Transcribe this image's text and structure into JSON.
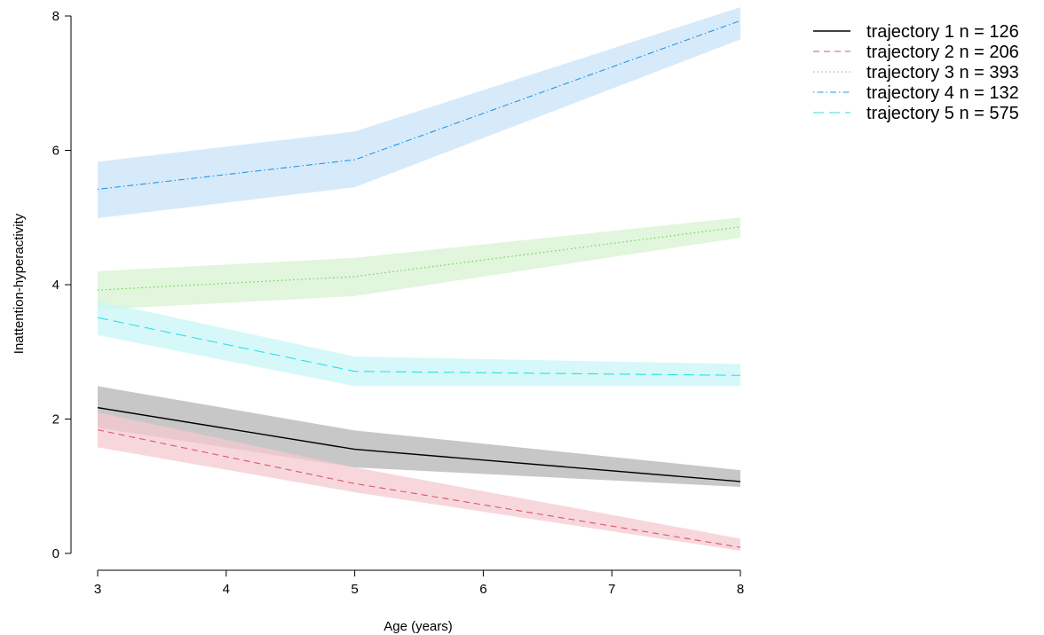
{
  "chart_data": {
    "type": "line",
    "xlabel": "Age (years)",
    "ylabel": "Inattention-hyperactivity",
    "xlim": [
      3,
      8
    ],
    "ylim": [
      0,
      8
    ],
    "x_ticks": [
      "3",
      "4",
      "5",
      "6",
      "7",
      "8"
    ],
    "y_ticks": [
      "0",
      "2",
      "4",
      "6",
      "8"
    ],
    "x": [
      3,
      5,
      8
    ],
    "legend_position": "top-right",
    "series": [
      {
        "name": "trajectory 1 n =  126",
        "color": "#000000",
        "band_color": "#b4b4b4",
        "dash": "solid",
        "values": [
          2.17,
          1.55,
          1.07
        ],
        "lower": [
          1.87,
          1.28,
          0.99
        ],
        "upper": [
          2.49,
          1.83,
          1.24
        ]
      },
      {
        "name": "trajectory 2 n =  206",
        "color": "#df536b",
        "band_color": "#f5c9d0",
        "dash": "dashed",
        "values": [
          1.84,
          1.04,
          0.09
        ],
        "lower": [
          1.58,
          0.91,
          0.04
        ],
        "upper": [
          2.1,
          1.28,
          0.22
        ]
      },
      {
        "name": "trajectory 3 n =  393",
        "color": "#61d04f",
        "band_color": "#d7f3d0",
        "dash": "dotted",
        "values": [
          3.92,
          4.12,
          4.86
        ],
        "lower": [
          3.63,
          3.83,
          4.7
        ],
        "upper": [
          4.2,
          4.4,
          5.0
        ]
      },
      {
        "name": "trajectory 4 n =  132",
        "color": "#2297e6",
        "band_color": "#c9e3f8",
        "dash": "dotdash",
        "values": [
          5.42,
          5.86,
          7.93
        ],
        "lower": [
          4.99,
          5.45,
          7.65
        ],
        "upper": [
          5.83,
          6.28,
          8.13
        ]
      },
      {
        "name": "trajectory 5 n =  575",
        "color": "#28e2e5",
        "band_color": "#c9f6f7",
        "dash": "longdash",
        "values": [
          3.51,
          2.71,
          2.65
        ],
        "lower": [
          3.25,
          2.49,
          2.49
        ],
        "upper": [
          3.76,
          2.93,
          2.82
        ]
      }
    ]
  }
}
